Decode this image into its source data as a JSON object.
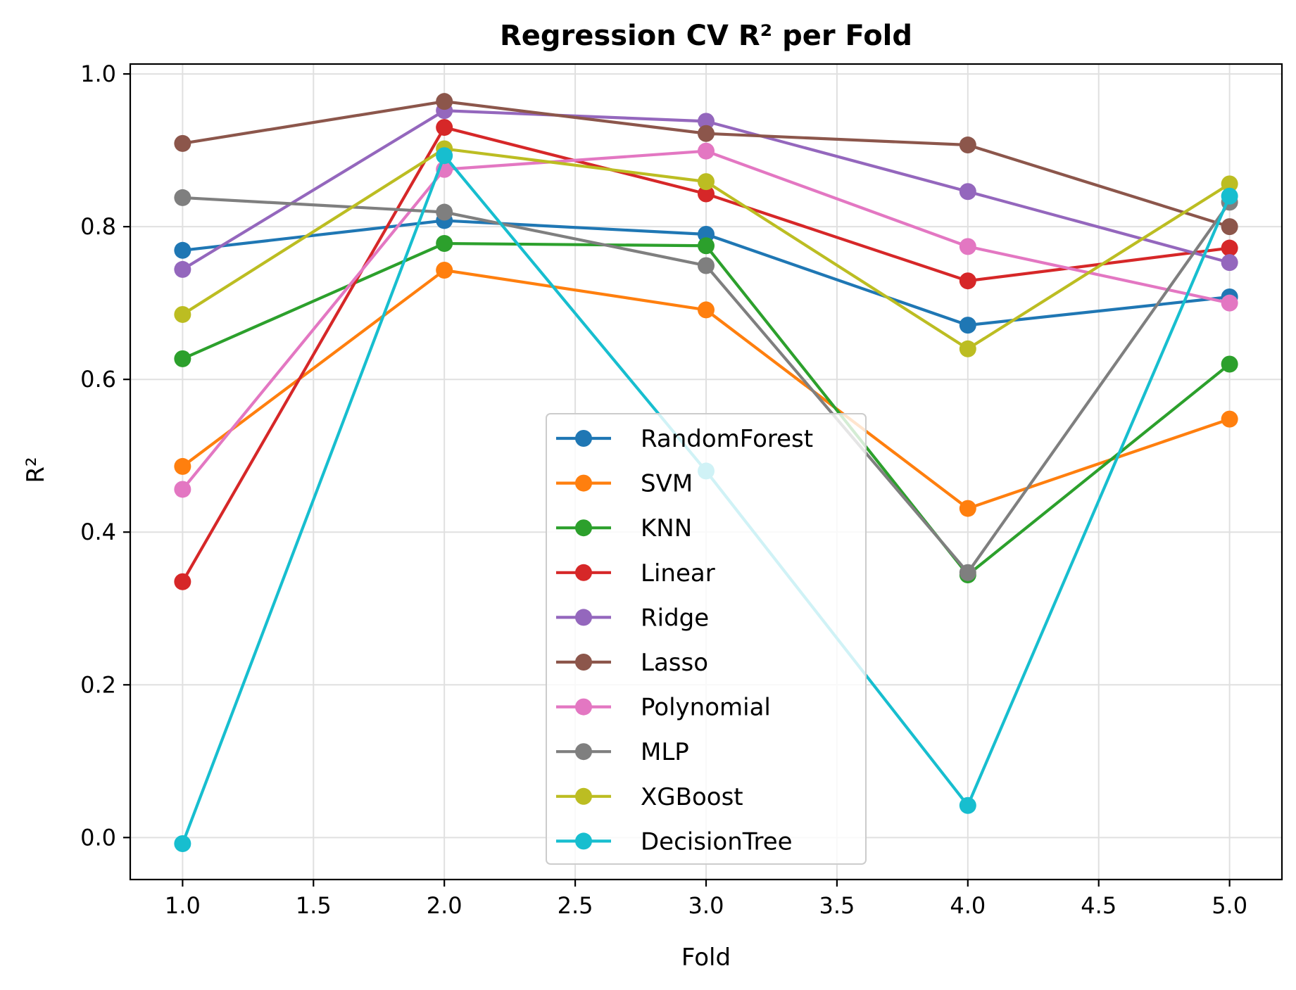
{
  "chart_data": {
    "type": "line",
    "title": "Regression CV R² per Fold",
    "xlabel": "Fold",
    "ylabel": "R²",
    "x": [
      1.0,
      2.0,
      3.0,
      4.0,
      5.0
    ],
    "xlim": [
      0.8,
      5.2
    ],
    "ylim": [
      -0.055,
      1.013
    ],
    "xticks": [
      "1.0",
      "1.5",
      "2.0",
      "2.5",
      "3.0",
      "3.5",
      "4.0",
      "4.5",
      "5.0"
    ],
    "yticks": [
      "0.0",
      "0.2",
      "0.4",
      "0.6",
      "0.8",
      "1.0"
    ],
    "grid": true,
    "legend_position": "lower center",
    "series": [
      {
        "name": "RandomForest",
        "color": "#1f77b4",
        "values": [
          0.769,
          0.808,
          0.79,
          0.671,
          0.708
        ]
      },
      {
        "name": "SVM",
        "color": "#ff7f0e",
        "values": [
          0.486,
          0.743,
          0.691,
          0.431,
          0.548
        ]
      },
      {
        "name": "KNN",
        "color": "#2ca02c",
        "values": [
          0.627,
          0.778,
          0.775,
          0.344,
          0.62
        ]
      },
      {
        "name": "Linear",
        "color": "#d62728",
        "values": [
          0.335,
          0.93,
          0.843,
          0.729,
          0.772
        ]
      },
      {
        "name": "Ridge",
        "color": "#9467bd",
        "values": [
          0.744,
          0.952,
          0.938,
          0.846,
          0.753
        ]
      },
      {
        "name": "Lasso",
        "color": "#8c564b",
        "values": [
          0.909,
          0.964,
          0.922,
          0.907,
          0.8
        ]
      },
      {
        "name": "Polynomial",
        "color": "#e377c2",
        "values": [
          0.456,
          0.875,
          0.899,
          0.774,
          0.7
        ]
      },
      {
        "name": "MLP",
        "color": "#7f7f7f",
        "values": [
          0.838,
          0.819,
          0.749,
          0.347,
          0.832
        ]
      },
      {
        "name": "XGBoost",
        "color": "#bcbd22",
        "values": [
          0.685,
          0.902,
          0.859,
          0.64,
          0.856
        ]
      },
      {
        "name": "DecisionTree",
        "color": "#17becf",
        "values": [
          -0.008,
          0.893,
          0.48,
          0.042,
          0.84
        ]
      }
    ]
  }
}
